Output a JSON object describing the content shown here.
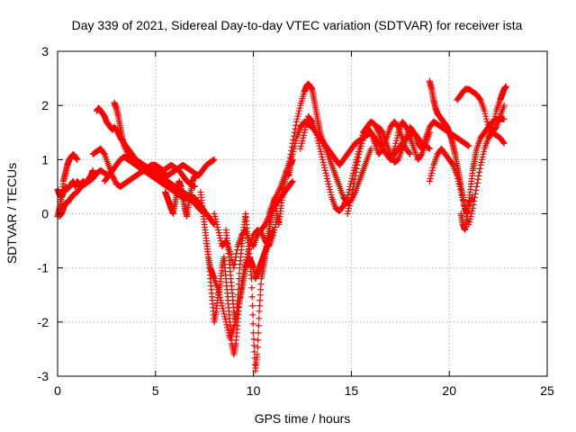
{
  "chart_data": {
    "type": "scatter",
    "title": "Day 339 of 2021, Sidereal Day-to-day VTEC variation (SDTVAR) for receiver ista",
    "xlabel": "GPS time / hours",
    "ylabel": "SDTVAR / TECUs",
    "xlim": [
      0,
      25
    ],
    "ylim": [
      -3,
      3
    ],
    "xticks": [
      0,
      5,
      10,
      15,
      20,
      25
    ],
    "yticks": [
      -3,
      -2,
      -1,
      0,
      1,
      2,
      3
    ],
    "grid": true,
    "marker": "+",
    "colors": {
      "series": "#ff0000",
      "axes": "#000000",
      "grid": "#a0a0a0"
    },
    "series": [
      {
        "x": [
          0.0,
          0.1,
          0.2,
          0.3,
          0.4,
          0.5,
          0.6,
          0.7,
          0.8,
          0.9,
          1.0,
          1.1,
          1.2,
          1.3,
          1.4,
          1.5,
          1.6,
          1.7,
          1.8
        ],
        "y": [
          0.45,
          0.35,
          0.3,
          0.4,
          0.5,
          0.45,
          0.5,
          0.55,
          0.6,
          0.5,
          0.6,
          0.55,
          0.55,
          0.6,
          0.55,
          0.6,
          0.65,
          0.7,
          0.8
        ]
      },
      {
        "x": [
          0.0,
          0.1,
          0.2,
          0.3,
          0.4,
          0.5,
          0.6,
          0.7,
          0.8,
          0.9,
          1.0
        ],
        "y": [
          -0.05,
          0.1,
          0.3,
          0.6,
          0.75,
          0.9,
          1.0,
          1.05,
          1.1,
          1.05,
          1.0
        ]
      },
      {
        "x": [
          0.1,
          0.2,
          0.3,
          0.4,
          0.5,
          0.6,
          0.7,
          0.8,
          1.0,
          1.2,
          1.4,
          1.6,
          1.8,
          2.0,
          2.2,
          2.4,
          2.6,
          2.8
        ],
        "y": [
          -0.05,
          0.0,
          0.1,
          0.2,
          0.2,
          0.25,
          0.3,
          0.35,
          0.4,
          0.5,
          0.55,
          0.6,
          0.65,
          0.75,
          0.8,
          0.75,
          0.7,
          0.8
        ]
      },
      {
        "x": [
          2.0,
          2.1,
          2.2,
          2.3,
          2.4,
          2.5,
          2.6,
          2.7,
          2.8,
          2.9,
          3.0,
          3.2,
          3.4,
          3.6,
          3.8,
          4.0,
          4.2,
          4.4,
          4.6,
          4.8,
          5.0,
          5.2,
          5.4,
          5.6,
          5.8,
          6.0,
          6.2,
          6.4,
          6.6,
          6.8,
          7.0,
          7.2,
          7.4,
          7.6,
          7.8,
          8.0
        ],
        "y": [
          1.9,
          1.95,
          1.9,
          1.85,
          1.8,
          1.7,
          1.65,
          1.6,
          1.55,
          1.6,
          1.55,
          1.4,
          1.3,
          1.2,
          1.1,
          1.0,
          0.95,
          0.9,
          0.85,
          0.8,
          0.75,
          0.7,
          0.65,
          0.6,
          0.55,
          0.5,
          0.45,
          0.4,
          0.35,
          0.3,
          0.3,
          0.2,
          0.1,
          0.0,
          -0.1,
          -0.2
        ]
      },
      {
        "x": [
          2.9,
          3.0,
          3.1,
          3.2,
          3.3,
          3.4,
          3.6,
          3.8,
          4.0,
          4.2,
          4.4,
          4.6,
          4.8,
          5.0,
          5.2,
          5.4,
          5.6,
          5.8,
          6.0,
          6.2,
          6.4,
          6.6,
          6.8,
          7.0,
          7.2,
          7.4,
          7.6,
          7.8
        ],
        "y": [
          2.05,
          1.95,
          1.8,
          1.6,
          1.4,
          1.25,
          1.1,
          1.0,
          0.9,
          0.85,
          0.8,
          0.75,
          0.7,
          0.65,
          0.6,
          0.55,
          0.5,
          0.45,
          0.4,
          0.35,
          0.3,
          0.3,
          0.25,
          0.2,
          0.1,
          0.05,
          0.0,
          -0.1
        ]
      },
      {
        "x": [
          1.8,
          2.0,
          2.2,
          2.4,
          2.6,
          2.8,
          3.0,
          3.2,
          3.4,
          3.6,
          3.8,
          4.0,
          4.2,
          4.4,
          4.6,
          4.8,
          5.0,
          5.2,
          5.4,
          5.6,
          5.8,
          6.0,
          6.2,
          6.4,
          6.6,
          6.8,
          7.0
        ],
        "y": [
          1.1,
          1.15,
          1.2,
          1.1,
          0.9,
          0.7,
          0.55,
          0.5,
          0.55,
          0.6,
          0.65,
          0.7,
          0.75,
          0.8,
          0.85,
          0.9,
          0.9,
          0.85,
          0.8,
          0.85,
          0.9,
          0.85,
          0.8,
          0.7,
          0.6,
          0.55,
          0.5
        ]
      },
      {
        "x": [
          2.4,
          2.6,
          2.8,
          3.0,
          3.2,
          3.4,
          3.6,
          3.8,
          4.0,
          4.2,
          4.4,
          4.6,
          4.8,
          5.0,
          5.2,
          5.4,
          5.6,
          5.8,
          6.0,
          6.2,
          6.4,
          6.6,
          6.8,
          7.0,
          7.2,
          7.4,
          7.6,
          7.8,
          8.0
        ],
        "y": [
          0.6,
          0.7,
          0.8,
          0.9,
          1.0,
          1.05,
          1.0,
          0.95,
          0.9,
          0.85,
          0.8,
          0.85,
          0.9,
          0.85,
          0.8,
          0.75,
          0.7,
          0.75,
          0.8,
          0.85,
          0.9,
          0.85,
          0.8,
          0.75,
          0.7,
          0.8,
          0.9,
          0.95,
          1.0
        ]
      },
      {
        "x": [
          5.5,
          5.6,
          5.7,
          5.8,
          5.9,
          6.0,
          6.1,
          6.2,
          6.3,
          6.4,
          6.5,
          6.6,
          6.7,
          6.8,
          6.9,
          7.0
        ],
        "y": [
          0.4,
          0.3,
          0.2,
          0.1,
          0.0,
          0.2,
          0.4,
          0.6,
          0.5,
          0.3,
          0.1,
          -0.05,
          0.2,
          0.4,
          0.6,
          0.7
        ]
      },
      {
        "x": [
          7.3,
          7.4,
          7.5,
          7.6,
          7.7,
          7.8,
          7.9,
          8.0,
          8.1,
          8.2,
          8.3,
          8.4,
          8.5,
          8.6,
          8.7,
          8.8,
          8.9,
          9.0,
          9.1,
          9.2,
          9.3,
          9.4,
          9.5,
          9.6,
          9.7,
          9.8,
          9.9,
          10.0,
          10.1,
          10.2,
          10.3,
          10.4,
          10.5,
          10.6,
          10.7,
          10.8,
          10.9,
          11.0
        ],
        "y": [
          0.4,
          0.1,
          -0.2,
          -0.5,
          -0.8,
          -1.2,
          -1.6,
          -2.0,
          -1.8,
          -1.5,
          -1.3,
          -1.0,
          -0.8,
          -1.2,
          -1.6,
          -2.0,
          -2.4,
          -2.6,
          -2.4,
          -2.0,
          -1.6,
          -1.4,
          -1.2,
          -1.0,
          -0.9,
          -0.8,
          -0.9,
          -1.0,
          -1.2,
          -1.1,
          -1.0,
          -0.9,
          -0.8,
          -0.7,
          -0.6,
          -0.5,
          -0.4,
          -0.3
        ]
      },
      {
        "x": [
          7.6,
          7.7,
          7.8,
          7.9,
          8.0,
          8.2,
          8.4,
          8.6,
          8.8,
          9.0,
          9.2,
          9.4,
          9.6,
          9.8,
          10.0,
          10.2,
          10.4,
          10.6,
          10.8,
          11.0,
          11.2
        ],
        "y": [
          -0.5,
          -0.8,
          -1.0,
          -1.1,
          -1.2,
          -1.4,
          -1.7,
          -2.0,
          -2.3,
          -2.1,
          -1.8,
          -1.3,
          -0.9,
          -0.6,
          -0.4,
          -0.3,
          -0.35,
          -0.5,
          -0.6,
          -0.4,
          -0.1
        ]
      },
      {
        "x": [
          8.0,
          8.2,
          8.4,
          8.6,
          8.8,
          9.0,
          9.2,
          9.4,
          9.6,
          9.8,
          10.0,
          10.2,
          10.4,
          10.6,
          10.8,
          11.0,
          11.2,
          11.4,
          11.6,
          11.8,
          12.0
        ],
        "y": [
          0.0,
          -0.3,
          -0.6,
          -0.5,
          -0.7,
          -1.0,
          -0.6,
          -0.4,
          -0.3,
          -0.5,
          -0.6,
          -0.4,
          -0.3,
          -0.2,
          -0.05,
          0.1,
          0.2,
          0.3,
          0.4,
          0.5,
          0.6
        ]
      },
      {
        "x": [
          8.6,
          8.7,
          8.8,
          8.9,
          9.0,
          9.1,
          9.2,
          9.3,
          9.4,
          9.5,
          9.6,
          9.7,
          9.8,
          9.9,
          10.0,
          10.1,
          10.2,
          10.3,
          10.4,
          10.5,
          10.6,
          10.7,
          10.8,
          10.9,
          11.0,
          11.1,
          11.2,
          11.3,
          11.4,
          11.5,
          11.6,
          11.7,
          11.8,
          11.9,
          12.0
        ],
        "y": [
          -0.3,
          -0.6,
          -1.0,
          -1.4,
          -1.8,
          -2.0,
          -1.6,
          -1.0,
          -0.6,
          -0.3,
          0.0,
          -0.4,
          -0.8,
          -1.2,
          -2.2,
          -2.9,
          -2.6,
          -1.8,
          -1.2,
          -1.0,
          -0.8,
          -0.5,
          -0.3,
          -0.1,
          0.1,
          0.3,
          0.0,
          -0.2,
          0.1,
          0.4,
          0.6,
          0.8,
          0.7,
          0.9,
          1.0
        ]
      },
      {
        "x": [
          10.8,
          11.0,
          11.2,
          11.4,
          11.6,
          11.8,
          12.0,
          12.2,
          12.4,
          12.6,
          12.8,
          13.0,
          13.2,
          13.4,
          13.6,
          13.8,
          14.0,
          14.2,
          14.4,
          14.6,
          14.8,
          15.0,
          15.2,
          15.4,
          15.6,
          15.8,
          16.0,
          16.2,
          16.4,
          16.6,
          16.8,
          17.0,
          17.2,
          17.4,
          17.6,
          17.8,
          18.0,
          18.2,
          18.4,
          18.6,
          18.8,
          19.0
        ],
        "y": [
          0.0,
          0.2,
          0.35,
          0.5,
          0.7,
          0.9,
          1.1,
          1.4,
          1.6,
          1.7,
          1.65,
          1.6,
          1.5,
          1.4,
          1.3,
          1.2,
          1.1,
          1.0,
          0.9,
          1.0,
          1.1,
          1.2,
          1.3,
          1.35,
          1.4,
          1.45,
          1.5,
          1.4,
          1.3,
          1.2,
          1.1,
          1.0,
          1.1,
          1.2,
          1.3,
          1.4,
          1.45,
          1.5,
          1.4,
          1.3,
          1.25,
          1.2
        ]
      },
      {
        "x": [
          11.8,
          12.0,
          12.2,
          12.4,
          12.6,
          12.7,
          12.8,
          12.9,
          13.0,
          13.1,
          13.2,
          13.3,
          13.4,
          13.6,
          13.8,
          14.0,
          14.2,
          14.4,
          14.6,
          14.8,
          15.0,
          15.2,
          15.4,
          15.6,
          15.8,
          16.0
        ],
        "y": [
          0.9,
          1.3,
          1.7,
          2.0,
          2.25,
          2.35,
          2.4,
          2.35,
          2.3,
          2.1,
          1.9,
          1.7,
          1.5,
          1.3,
          1.1,
          0.9,
          0.7,
          0.5,
          0.3,
          0.2,
          0.25,
          0.4,
          0.6,
          0.8,
          1.0,
          1.2
        ]
      },
      {
        "x": [
          12.4,
          12.6,
          12.8,
          13.0,
          13.2,
          13.4,
          13.6,
          13.8,
          14.0,
          14.2,
          14.4,
          14.6,
          14.8,
          15.0,
          15.2,
          15.4,
          15.6,
          15.8,
          16.0,
          16.2,
          16.4,
          16.6,
          16.8,
          17.0,
          17.2,
          17.4,
          17.6,
          17.8,
          18.0
        ],
        "y": [
          1.2,
          1.5,
          1.8,
          1.7,
          1.5,
          1.2,
          0.9,
          0.6,
          0.3,
          0.1,
          0.05,
          0.15,
          0.3,
          0.6,
          0.9,
          1.2,
          1.5,
          1.6,
          1.5,
          1.3,
          1.1,
          1.2,
          1.4,
          1.6,
          1.7,
          1.6,
          1.4,
          1.2,
          1.1
        ]
      },
      {
        "x": [
          14.8,
          15.0,
          15.2,
          15.4,
          15.6,
          15.8,
          16.0,
          16.2,
          16.4,
          16.6,
          16.8,
          17.0,
          17.2,
          17.4,
          17.6,
          17.8,
          18.0,
          18.2,
          18.4,
          18.6,
          18.8,
          19.0
        ],
        "y": [
          0.0,
          0.3,
          0.7,
          1.1,
          1.4,
          1.6,
          1.7,
          1.65,
          1.5,
          1.3,
          1.1,
          1.0,
          1.2,
          1.5,
          1.7,
          1.6,
          1.4,
          1.2,
          1.0,
          1.1,
          1.3,
          1.5
        ]
      },
      {
        "x": [
          16.4,
          16.6,
          16.8,
          17.0,
          17.2,
          17.4,
          17.6,
          17.8,
          18.0,
          18.2,
          18.4,
          18.6,
          18.8,
          19.0,
          19.2,
          19.4,
          19.6,
          19.8,
          20.0,
          20.2,
          20.4,
          20.6,
          20.8,
          21.0
        ],
        "y": [
          1.6,
          1.5,
          1.3,
          1.1,
          0.95,
          1.0,
          1.2,
          1.4,
          1.6,
          1.5,
          1.3,
          1.2,
          1.4,
          1.6,
          1.7,
          1.65,
          1.6,
          1.55,
          1.5,
          1.45,
          1.4,
          1.35,
          1.3,
          1.25
        ]
      },
      {
        "x": [
          19.0,
          19.1,
          19.2,
          19.3,
          19.4,
          19.5,
          19.6,
          19.7,
          19.8,
          19.9,
          20.0,
          20.1,
          20.2,
          20.3,
          20.4,
          20.5,
          20.6,
          20.7,
          20.8,
          20.9,
          21.0,
          21.2
        ],
        "y": [
          2.45,
          2.3,
          2.1,
          1.95,
          1.85,
          1.8,
          1.75,
          1.7,
          1.65,
          1.6,
          1.5,
          1.4,
          1.25,
          1.1,
          0.9,
          0.7,
          0.5,
          0.3,
          0.1,
          0.0,
          0.2,
          0.3
        ]
      },
      {
        "x": [
          19.0,
          19.2,
          19.4,
          19.6,
          19.8,
          20.0,
          20.2,
          20.4,
          20.6,
          20.8,
          21.0,
          21.2,
          21.4,
          21.6,
          21.8,
          22.0,
          22.2,
          22.4,
          22.6,
          22.8
        ],
        "y": [
          0.6,
          0.9,
          1.1,
          1.2,
          1.1,
          1.0,
          0.9,
          0.7,
          0.4,
          0.1,
          -0.2,
          0.1,
          0.5,
          0.9,
          1.2,
          1.4,
          1.5,
          1.45,
          1.4,
          1.3
        ]
      },
      {
        "x": [
          20.4,
          20.6,
          20.8,
          21.0,
          21.2,
          21.4,
          21.6,
          21.8,
          22.0,
          22.2,
          22.4,
          22.6,
          22.8
        ],
        "y": [
          2.1,
          2.2,
          2.3,
          2.3,
          2.25,
          2.2,
          2.1,
          1.9,
          1.6,
          1.5,
          1.6,
          1.8,
          2.0
        ]
      },
      {
        "x": [
          20.6,
          20.7,
          20.8,
          20.9,
          21.0,
          21.1,
          21.2,
          21.3,
          21.4,
          21.6,
          21.8,
          22.0,
          22.2,
          22.4,
          22.6,
          22.8
        ],
        "y": [
          0.0,
          -0.2,
          -0.3,
          -0.1,
          0.2,
          0.5,
          0.8,
          1.0,
          1.2,
          1.4,
          1.5,
          1.6,
          1.7,
          1.75,
          1.75,
          1.75
        ]
      },
      {
        "x": [
          22.0,
          22.2,
          22.4,
          22.6,
          22.7,
          22.8,
          22.9
        ],
        "y": [
          1.4,
          1.6,
          1.9,
          2.1,
          2.2,
          2.3,
          2.35
        ]
      }
    ]
  }
}
